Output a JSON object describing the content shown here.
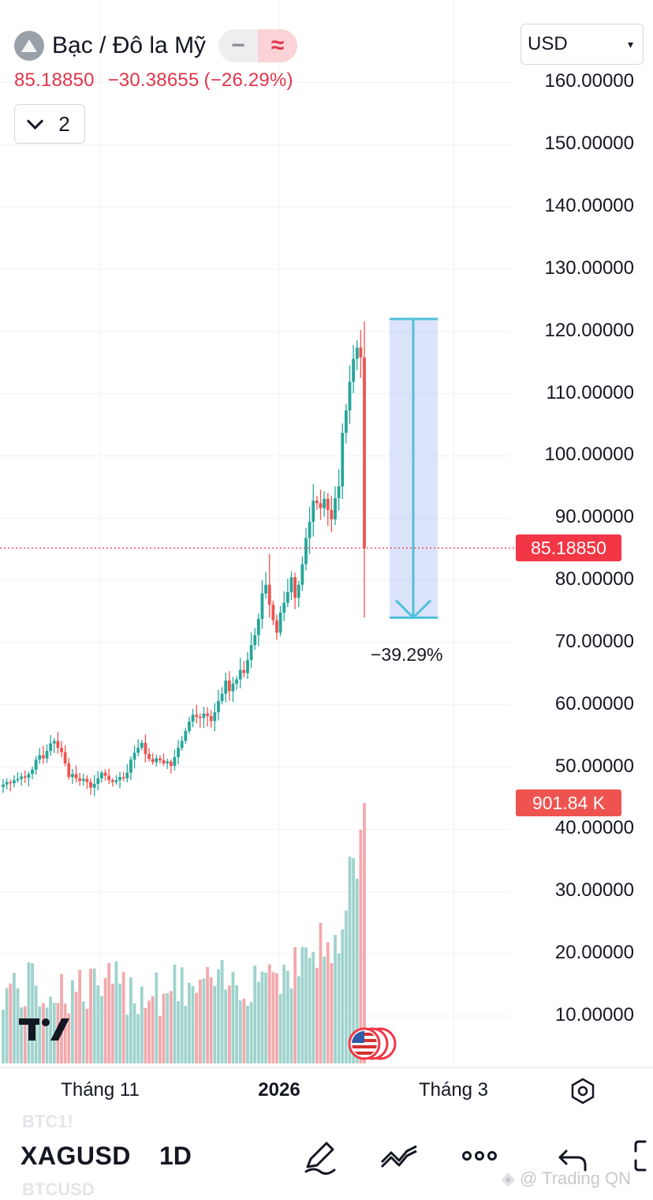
{
  "header": {
    "symbol_name": "Bạc / Đô la Mỹ",
    "symbol_icon": "silver-bars-icon",
    "minus_glyph": "−",
    "wave_glyph": "≈",
    "last_price": "85.18850",
    "change": "−30.38655",
    "change_pct": "(−26.29%)",
    "collapse_count": "2",
    "currency": "USD"
  },
  "price_axis": {
    "labels": [
      "160.00000",
      "150.00000",
      "140.00000",
      "130.00000",
      "120.00000",
      "110.00000",
      "100.00000",
      "90.00000",
      "80.00000",
      "70.00000",
      "60.00000",
      "50.00000",
      "40.00000",
      "30.00000",
      "20.00000",
      "10.00000"
    ],
    "last_price_badge": "85.18850",
    "volume_badge": "901.84 K"
  },
  "time_axis": {
    "labels": [
      "Tháng 11",
      "2026",
      "Tháng 3"
    ]
  },
  "measure": {
    "label": "−39.29%",
    "from_price": 122,
    "to_price": 74
  },
  "chart_data": {
    "type": "candlestick",
    "symbol": "XAGUSD",
    "interval": "1D",
    "ylim": [
      0,
      165
    ],
    "y_ticks": [
      10,
      20,
      30,
      40,
      50,
      60,
      70,
      80,
      90,
      100,
      110,
      120,
      130,
      140,
      150,
      160
    ],
    "x_ticks": [
      "Tháng 11",
      "2026",
      "Tháng 3"
    ],
    "last_price": 85.1885,
    "series": [
      {
        "name": "price",
        "close_approx": [
          47.2,
          47.6,
          47.4,
          47.9,
          48.1,
          48.5,
          48.3,
          48.9,
          49.6,
          51.2,
          51.9,
          51.4,
          52.6,
          53.8,
          54.2,
          53.1,
          52.4,
          50.6,
          48.4,
          48.9,
          48.2,
          47.8,
          48.1,
          47.6,
          46.7,
          47.3,
          48.2,
          49.1,
          48.6,
          47.9,
          47.6,
          47.9,
          48.4,
          48.2,
          49.1,
          51.2,
          52.3,
          53.1,
          53.9,
          52.1,
          51.3,
          50.8,
          51.4,
          51.1,
          50.6,
          50.9,
          50.2,
          51.6,
          53.1,
          54.2,
          55.8,
          57.3,
          58.4,
          58.1,
          57.9,
          58.6,
          58.2,
          57.4,
          58.8,
          60.6,
          61.8,
          63.9,
          62.2,
          63.4,
          64.1,
          65.6,
          65.1,
          67.2,
          69.6,
          71.2,
          73.8,
          77.9,
          79.3,
          76.1,
          73.6,
          71.6,
          74.8,
          76.4,
          78.1,
          80.5,
          77.2,
          79.3,
          82.6,
          86.8,
          89.4,
          92.8,
          92.4,
          91.6,
          93.1,
          91.3,
          89.8,
          93.2,
          95.1,
          103.7,
          107.3,
          111.9,
          115.6,
          117.4,
          115.8,
          85.2
        ]
      }
    ],
    "volume": {
      "unit": "K",
      "last": 901.84
    }
  }
}
